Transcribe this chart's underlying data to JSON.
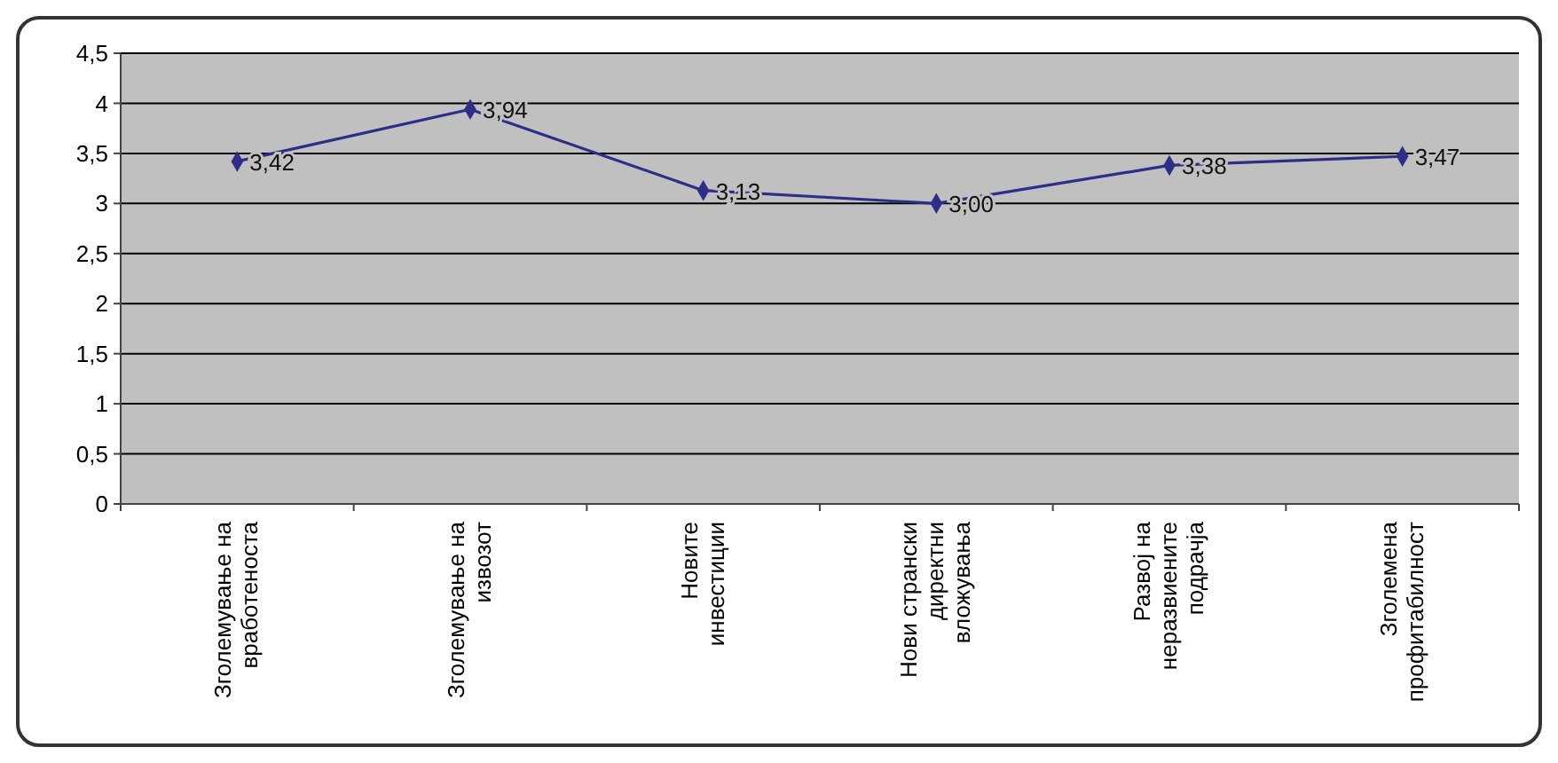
{
  "chart_data": {
    "type": "line",
    "categories": [
      "Зголемување на вработеноста",
      "Зголемување на извозот",
      "Новите инвестиции",
      "Нови странски директни вложувања",
      "Развој на неразвиените подрачја",
      "Зголемена профитабилност"
    ],
    "series": [
      {
        "color": "#2e2e8a",
        "values": [
          3.42,
          3.94,
          3.13,
          3.0,
          3.38,
          3.47
        ],
        "value_labels": [
          "3,42",
          "3,94",
          "3,13",
          "3,00",
          "3,38",
          "3,47"
        ]
      }
    ],
    "ylim": [
      0,
      4.5
    ],
    "yticks": [
      0,
      {
        "value": 0.5,
        "label": "0,5"
      },
      1,
      {
        "value": 1.5,
        "label": "1,5"
      },
      2,
      {
        "value": 2.5,
        "label": "2,5"
      },
      3,
      {
        "value": 3.5,
        "label": "3,5"
      },
      4,
      {
        "value": 4.5,
        "label": "4,5"
      }
    ],
    "grid": "y",
    "marker": "diamond",
    "line_style": "solid"
  }
}
